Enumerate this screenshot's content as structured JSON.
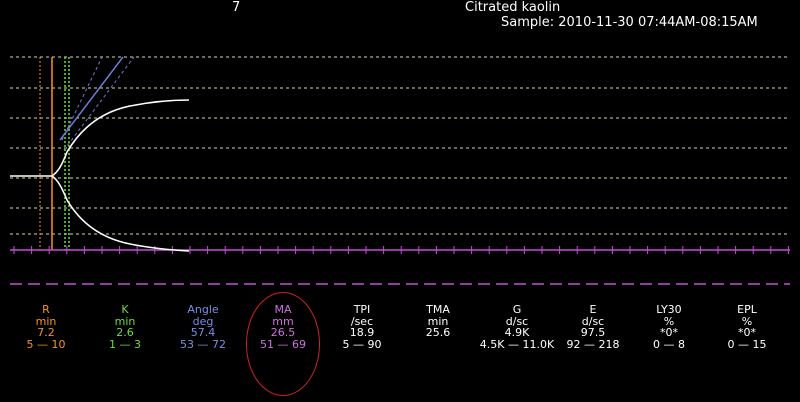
{
  "header": {
    "channel": "7",
    "title": "Citrated kaolin",
    "sample": "Sample: 2010-11-30 07:44AM-08:15AM"
  },
  "colors": {
    "background": "#000000",
    "grid": "#d8d8a0",
    "trace": "#ffffff",
    "r_marker": "#f7941d",
    "k_marker": "#7cd63e",
    "angle_line": "#6d7bd6",
    "baseline": "#c44fd6",
    "highlight_circle": "#d32020"
  },
  "params": [
    {
      "id": "r",
      "name": "R",
      "unit": "min",
      "value": "7.2",
      "range": "5 — 10",
      "color": "#f7941d",
      "range_color": "#f7941d"
    },
    {
      "id": "k",
      "name": "K",
      "unit": "min",
      "value": "2.6",
      "range": "1 — 3",
      "color": "#6fdc3c",
      "range_color": "#6fdc3c"
    },
    {
      "id": "angle",
      "name": "Angle",
      "unit": "deg",
      "value": "57.4",
      "range": "53 — 72",
      "color": "#7b8de8",
      "range_color": "#7b8de8"
    },
    {
      "id": "ma",
      "name": "MA",
      "unit": "mm",
      "value": "26.5",
      "range": "51 — 69",
      "color": "#d070e0",
      "range_color": "#d070e0"
    },
    {
      "id": "tpi",
      "name": "TPI",
      "unit": "/sec",
      "value": "18.9",
      "range": "5 — 90",
      "color": "#ffffff",
      "range_color": "#ffffff"
    },
    {
      "id": "tma",
      "name": "TMA",
      "unit": "min",
      "value": "25.6",
      "range": "",
      "color": "#ffffff",
      "range_color": "#ffffff"
    },
    {
      "id": "g",
      "name": "G",
      "unit": "d/sc",
      "value": "4.9K",
      "range": "4.5K — 11.0K",
      "color": "#ffffff",
      "range_color": "#ffffff"
    },
    {
      "id": "e",
      "name": "E",
      "unit": "d/sc",
      "value": "97.5",
      "range": "92 — 218",
      "color": "#ffffff",
      "range_color": "#ffffff"
    },
    {
      "id": "ly30",
      "name": "LY30",
      "unit": "%",
      "value": "*0*",
      "range": "0 — 8",
      "color": "#ffffff",
      "range_color": "#ffffff"
    },
    {
      "id": "epl",
      "name": "EPL",
      "unit": "%",
      "value": "*0*",
      "range": "0 — 15",
      "color": "#ffffff",
      "range_color": "#ffffff"
    }
  ],
  "highlighted_param": "ma"
}
